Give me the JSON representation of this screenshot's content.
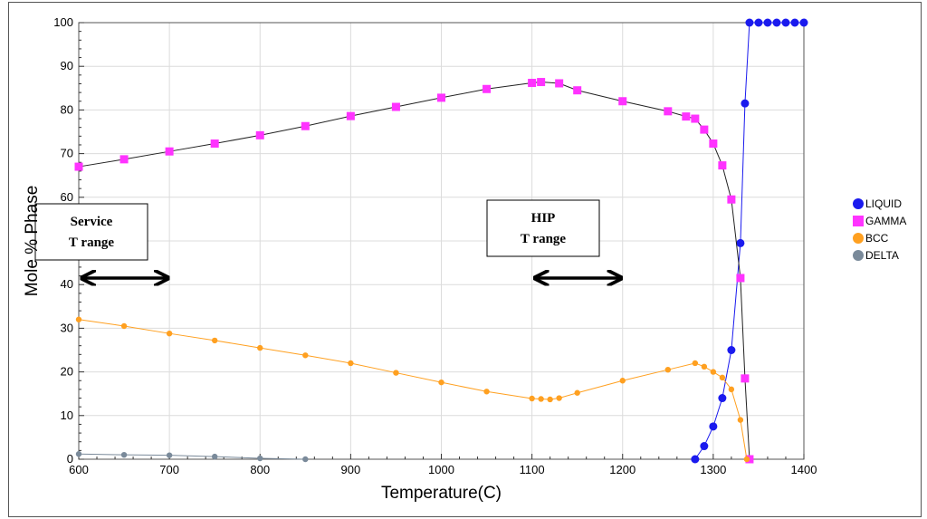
{
  "chart_data": {
    "type": "scatter",
    "title": "",
    "xlabel": "Temperature(C)",
    "ylabel": "Mole % Phase",
    "xlim": [
      600,
      1400
    ],
    "ylim": [
      0,
      100
    ],
    "xticks": [
      600,
      700,
      800,
      900,
      1000,
      1100,
      1200,
      1300,
      1400
    ],
    "yticks": [
      0,
      10,
      20,
      30,
      40,
      50,
      60,
      70,
      80,
      90,
      100
    ],
    "grid": true,
    "legend_position": "right",
    "series": [
      {
        "name": "LIQUID",
        "color": "#1a1aee",
        "marker": "circle",
        "x": [
          1280,
          1290,
          1300,
          1310,
          1320,
          1330,
          1335,
          1340,
          1350,
          1360,
          1370,
          1380,
          1390,
          1400
        ],
        "y": [
          0,
          3,
          7.5,
          14,
          25,
          49.5,
          81.5,
          100,
          100,
          100,
          100,
          100,
          100,
          100
        ]
      },
      {
        "name": "GAMMA",
        "color": "#ff33ff",
        "marker": "square",
        "x": [
          600,
          650,
          700,
          750,
          800,
          850,
          900,
          950,
          1000,
          1050,
          1100,
          1110,
          1130,
          1150,
          1200,
          1250,
          1270,
          1280,
          1290,
          1300,
          1310,
          1320,
          1330,
          1335,
          1340
        ],
        "y": [
          67,
          68.7,
          70.5,
          72.3,
          74.2,
          76.3,
          78.6,
          80.7,
          82.8,
          84.8,
          86.2,
          86.4,
          86.1,
          84.5,
          82,
          79.7,
          78.5,
          78,
          75.5,
          72.3,
          67.3,
          59.5,
          41.5,
          18.5,
          0
        ]
      },
      {
        "name": "BCC",
        "color": "#ffa020",
        "marker": "circle",
        "x": [
          600,
          650,
          700,
          750,
          800,
          850,
          900,
          950,
          1000,
          1050,
          1100,
          1110,
          1120,
          1130,
          1150,
          1200,
          1250,
          1280,
          1290,
          1300,
          1310,
          1320,
          1330,
          1337
        ],
        "y": [
          32,
          30.5,
          28.8,
          27.2,
          25.5,
          23.8,
          22,
          19.8,
          17.6,
          15.5,
          13.9,
          13.8,
          13.7,
          14,
          15.2,
          18,
          20.5,
          22,
          21.2,
          20,
          18.7,
          16,
          9,
          0
        ]
      },
      {
        "name": "DELTA",
        "color": "#7a8a9a",
        "marker": "circle",
        "x": [
          600,
          650,
          700,
          750,
          800,
          850
        ],
        "y": [
          1.2,
          1,
          0.9,
          0.6,
          0.2,
          0
        ]
      }
    ],
    "annotations": [
      {
        "label_line1": "Service",
        "label_line2": "T range",
        "arrow_from": 605,
        "arrow_to": 697,
        "arrow_y": 41.5
      },
      {
        "label_line1": "HIP",
        "label_line2": "T range",
        "arrow_from": 1105,
        "arrow_to": 1197,
        "arrow_y": 41.5
      }
    ]
  }
}
